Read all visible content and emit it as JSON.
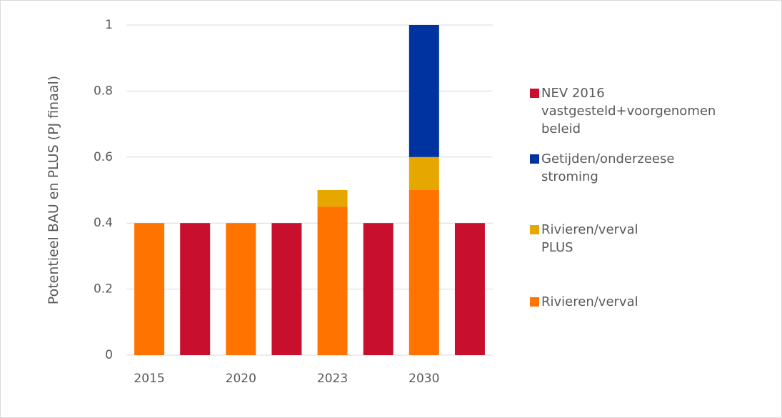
{
  "chart_data": {
    "type": "bar",
    "stacked": true,
    "y_label": "Potentieel BAU en PLUS (PJ finaal)",
    "categories": [
      "2015",
      null,
      "2020",
      null,
      "2023",
      null,
      "2030",
      null
    ],
    "series": [
      {
        "name": "NEV 2016 vastgesteld+voorgenomen beleid",
        "color": "#c8102e",
        "values": [
          null,
          0.4,
          null,
          0.4,
          null,
          0.4,
          null,
          0.4
        ]
      },
      {
        "name": "Getijden/onderzeese stroming",
        "color": "#0033a0",
        "values": [
          null,
          null,
          null,
          null,
          null,
          null,
          0.4,
          null
        ]
      },
      {
        "name": "Rivieren/verval PLUS",
        "color": "#e6a800",
        "values": [
          null,
          null,
          null,
          null,
          0.05,
          null,
          0.1,
          null
        ]
      },
      {
        "name": "Rivieren/verval",
        "color": "#ff7300",
        "values": [
          0.4,
          null,
          0.4,
          null,
          0.45,
          null,
          0.5,
          null
        ]
      }
    ],
    "ylim": [
      0,
      1
    ],
    "yticks": [
      0,
      0.2,
      0.4,
      0.6,
      0.8,
      1
    ],
    "grid": true,
    "legend": "right"
  }
}
